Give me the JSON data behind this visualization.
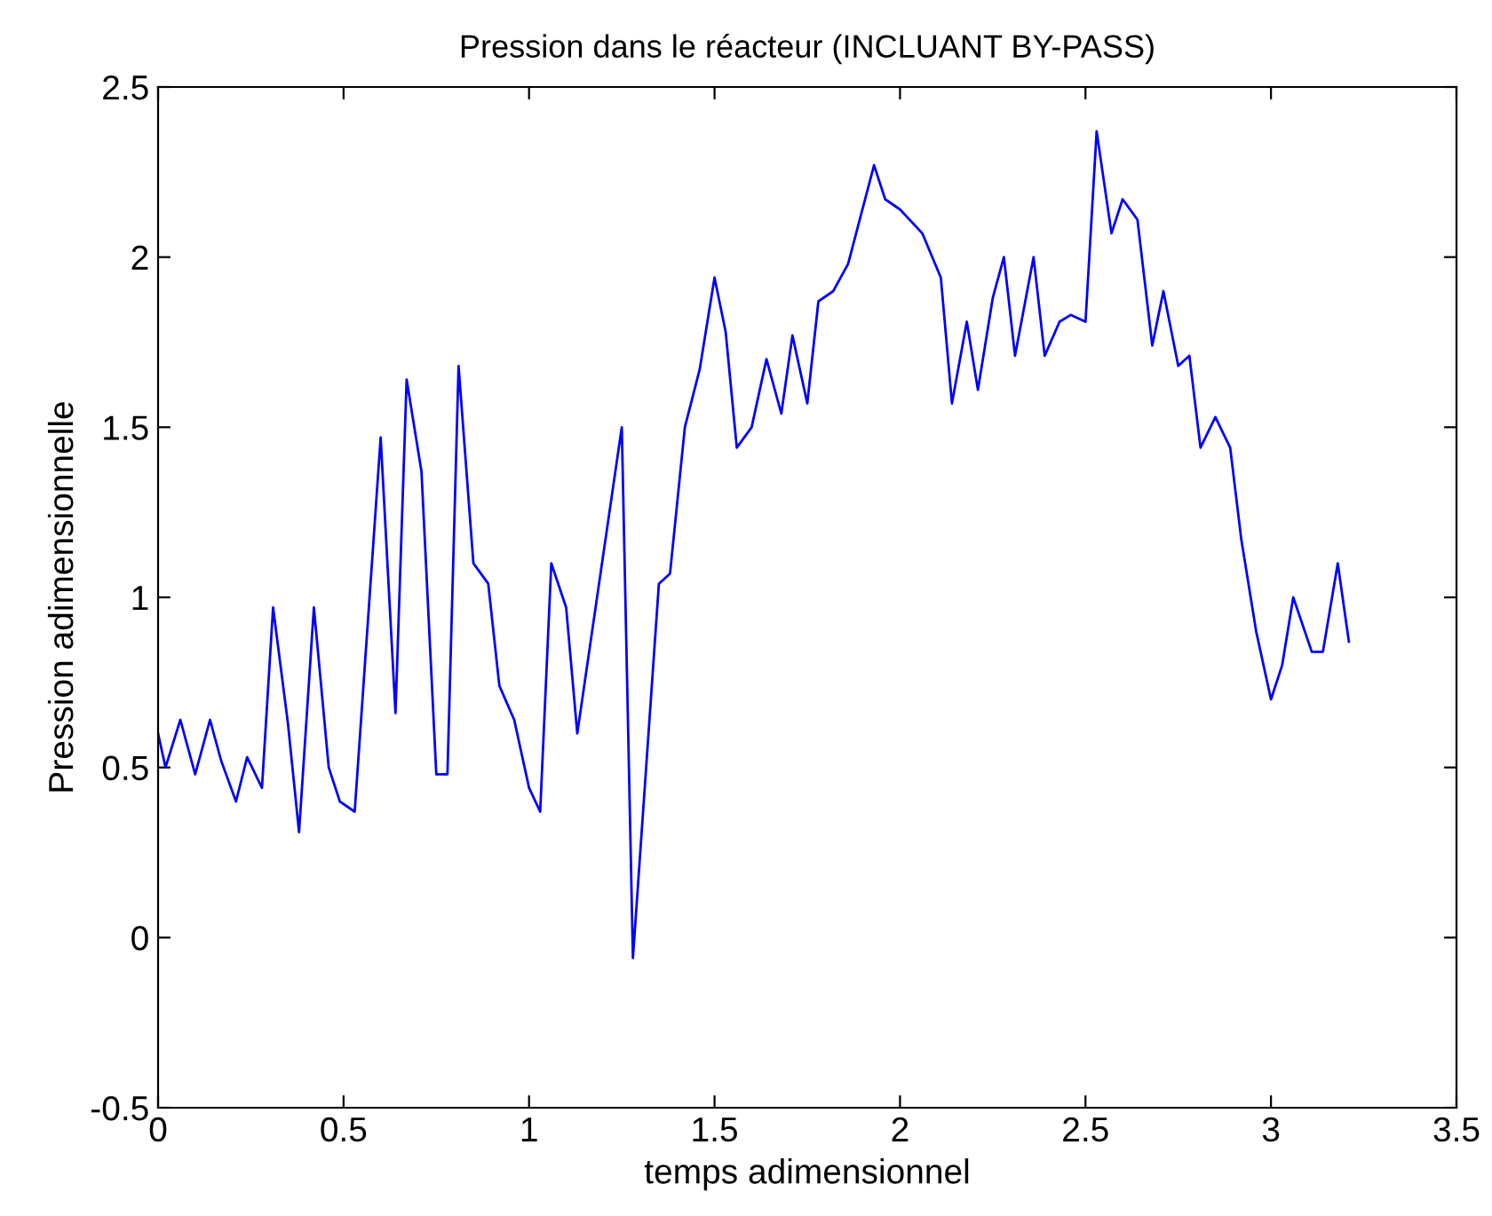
{
  "chart_data": {
    "type": "line",
    "title": "Pression dans le réacteur (INCLUANT BY-PASS)",
    "xlabel": "temps adimensionnel",
    "ylabel": "Pression adimensionnelle",
    "series": [
      {
        "color": "#0000ff",
        "x": [
          0,
          0.02,
          0.06,
          0.1,
          0.14,
          0.17,
          0.21,
          0.24,
          0.28,
          0.31,
          0.35,
          0.38,
          0.42,
          0.46,
          0.49,
          0.53,
          0.6,
          0.64,
          0.67,
          0.71,
          0.75,
          0.78,
          0.81,
          0.85,
          0.89,
          0.92,
          0.96,
          1.0,
          1.03,
          1.06,
          1.1,
          1.13,
          1.25,
          1.28,
          1.35,
          1.38,
          1.42,
          1.46,
          1.5,
          1.53,
          1.56,
          1.6,
          1.64,
          1.68,
          1.71,
          1.75,
          1.78,
          1.82,
          1.86,
          1.93,
          1.96,
          2.0,
          2.06,
          2.11,
          2.14,
          2.18,
          2.21,
          2.25,
          2.28,
          2.31,
          2.36,
          2.39,
          2.43,
          2.46,
          2.5,
          2.53,
          2.57,
          2.6,
          2.64,
          2.68,
          2.71,
          2.75,
          2.78,
          2.81,
          2.85,
          2.89,
          2.92,
          2.96,
          3.0,
          3.03,
          3.06,
          3.11,
          3.14,
          3.18,
          3.21
        ],
        "values": [
          0.6,
          0.5,
          0.64,
          0.48,
          0.64,
          0.52,
          0.4,
          0.53,
          0.44,
          0.97,
          0.63,
          0.31,
          0.97,
          0.5,
          0.4,
          0.37,
          1.47,
          0.66,
          1.64,
          1.37,
          0.48,
          0.48,
          1.68,
          1.1,
          1.04,
          0.74,
          0.64,
          0.44,
          0.37,
          1.1,
          0.97,
          0.6,
          1.5,
          -0.06,
          1.04,
          1.07,
          1.5,
          1.67,
          1.94,
          1.78,
          1.44,
          1.5,
          1.7,
          1.54,
          1.77,
          1.57,
          1.87,
          1.9,
          1.98,
          2.27,
          2.17,
          2.14,
          2.07,
          1.94,
          1.57,
          1.81,
          1.61,
          1.88,
          2.0,
          1.71,
          2.0,
          1.71,
          1.81,
          1.83,
          1.81,
          2.37,
          2.07,
          2.17,
          2.11,
          1.74,
          1.9,
          1.68,
          1.71,
          1.44,
          1.53,
          1.44,
          1.17,
          0.9,
          0.7,
          0.8,
          1.0,
          0.84,
          0.84,
          1.1,
          0.87
        ]
      }
    ],
    "xlim": [
      0,
      3.5
    ],
    "xticks": [
      0,
      0.5,
      1,
      1.5,
      2,
      2.5,
      3,
      3.5
    ],
    "ylim": [
      -0.5,
      2.5
    ],
    "yticks": [
      -0.5,
      0,
      0.5,
      1,
      1.5,
      2,
      2.5
    ],
    "grid": false,
    "marker": "none",
    "line_style": "solid"
  }
}
